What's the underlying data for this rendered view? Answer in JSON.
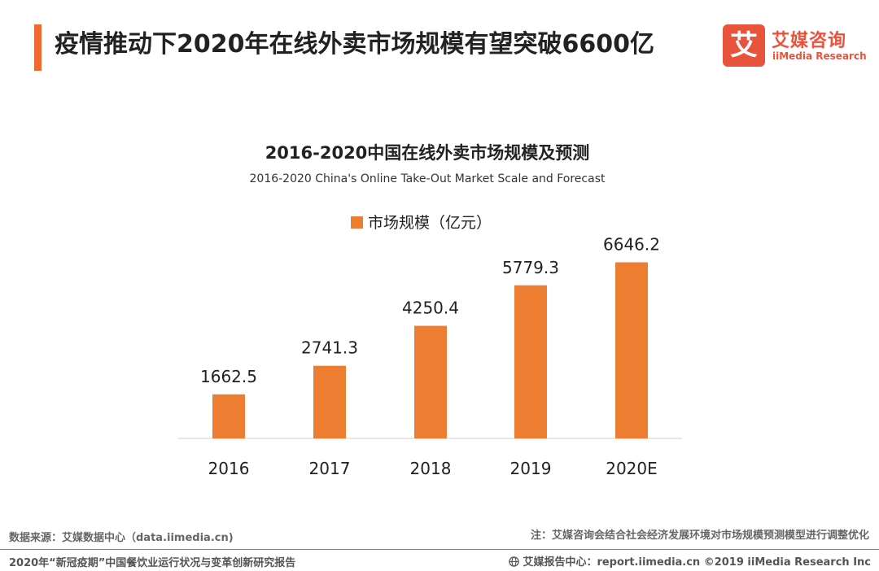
{
  "header": {
    "title": "疫情推动下2020年在线外卖市场规模有望突破6600亿",
    "accent_color": "#f0692f"
  },
  "logo": {
    "mark": "艾",
    "name_cn": "艾媒咨询",
    "name_en": "iiMedia Research",
    "color": "#e9533b"
  },
  "chart_data": {
    "type": "bar",
    "title": "2016-2020中国在线外卖市场规模及预测",
    "subtitle": "2016-2020 China's Online Take-Out Market Scale and Forecast",
    "categories": [
      "2016",
      "2017",
      "2018",
      "2019",
      "2020E"
    ],
    "series": [
      {
        "name": "市场规模（亿元）",
        "values": [
          1662.5,
          2741.3,
          4250.4,
          5779.3,
          6646.2
        ],
        "color": "#ed7d31"
      }
    ],
    "value_labels": [
      "1662.5",
      "2741.3",
      "4250.4",
      "5779.3",
      "6646.2"
    ],
    "ylim": [
      0,
      7000
    ],
    "grid": false,
    "legend": "top-center",
    "xlabel": "",
    "ylabel": ""
  },
  "footer": {
    "source": "数据来源：艾媒数据中心（data.iimedia.cn)",
    "note": "注：艾媒咨询会结合社会经济发展环境对市场规模预测模型进行调整优化",
    "report": "2020年“新冠疫期”中国餐饮业运行状况与变革创新研究报告",
    "report_center": "艾媒报告中心：report.iimedia.cn  ©2019  iiMedia Research  Inc",
    "globe_icon": "globe-icon"
  }
}
